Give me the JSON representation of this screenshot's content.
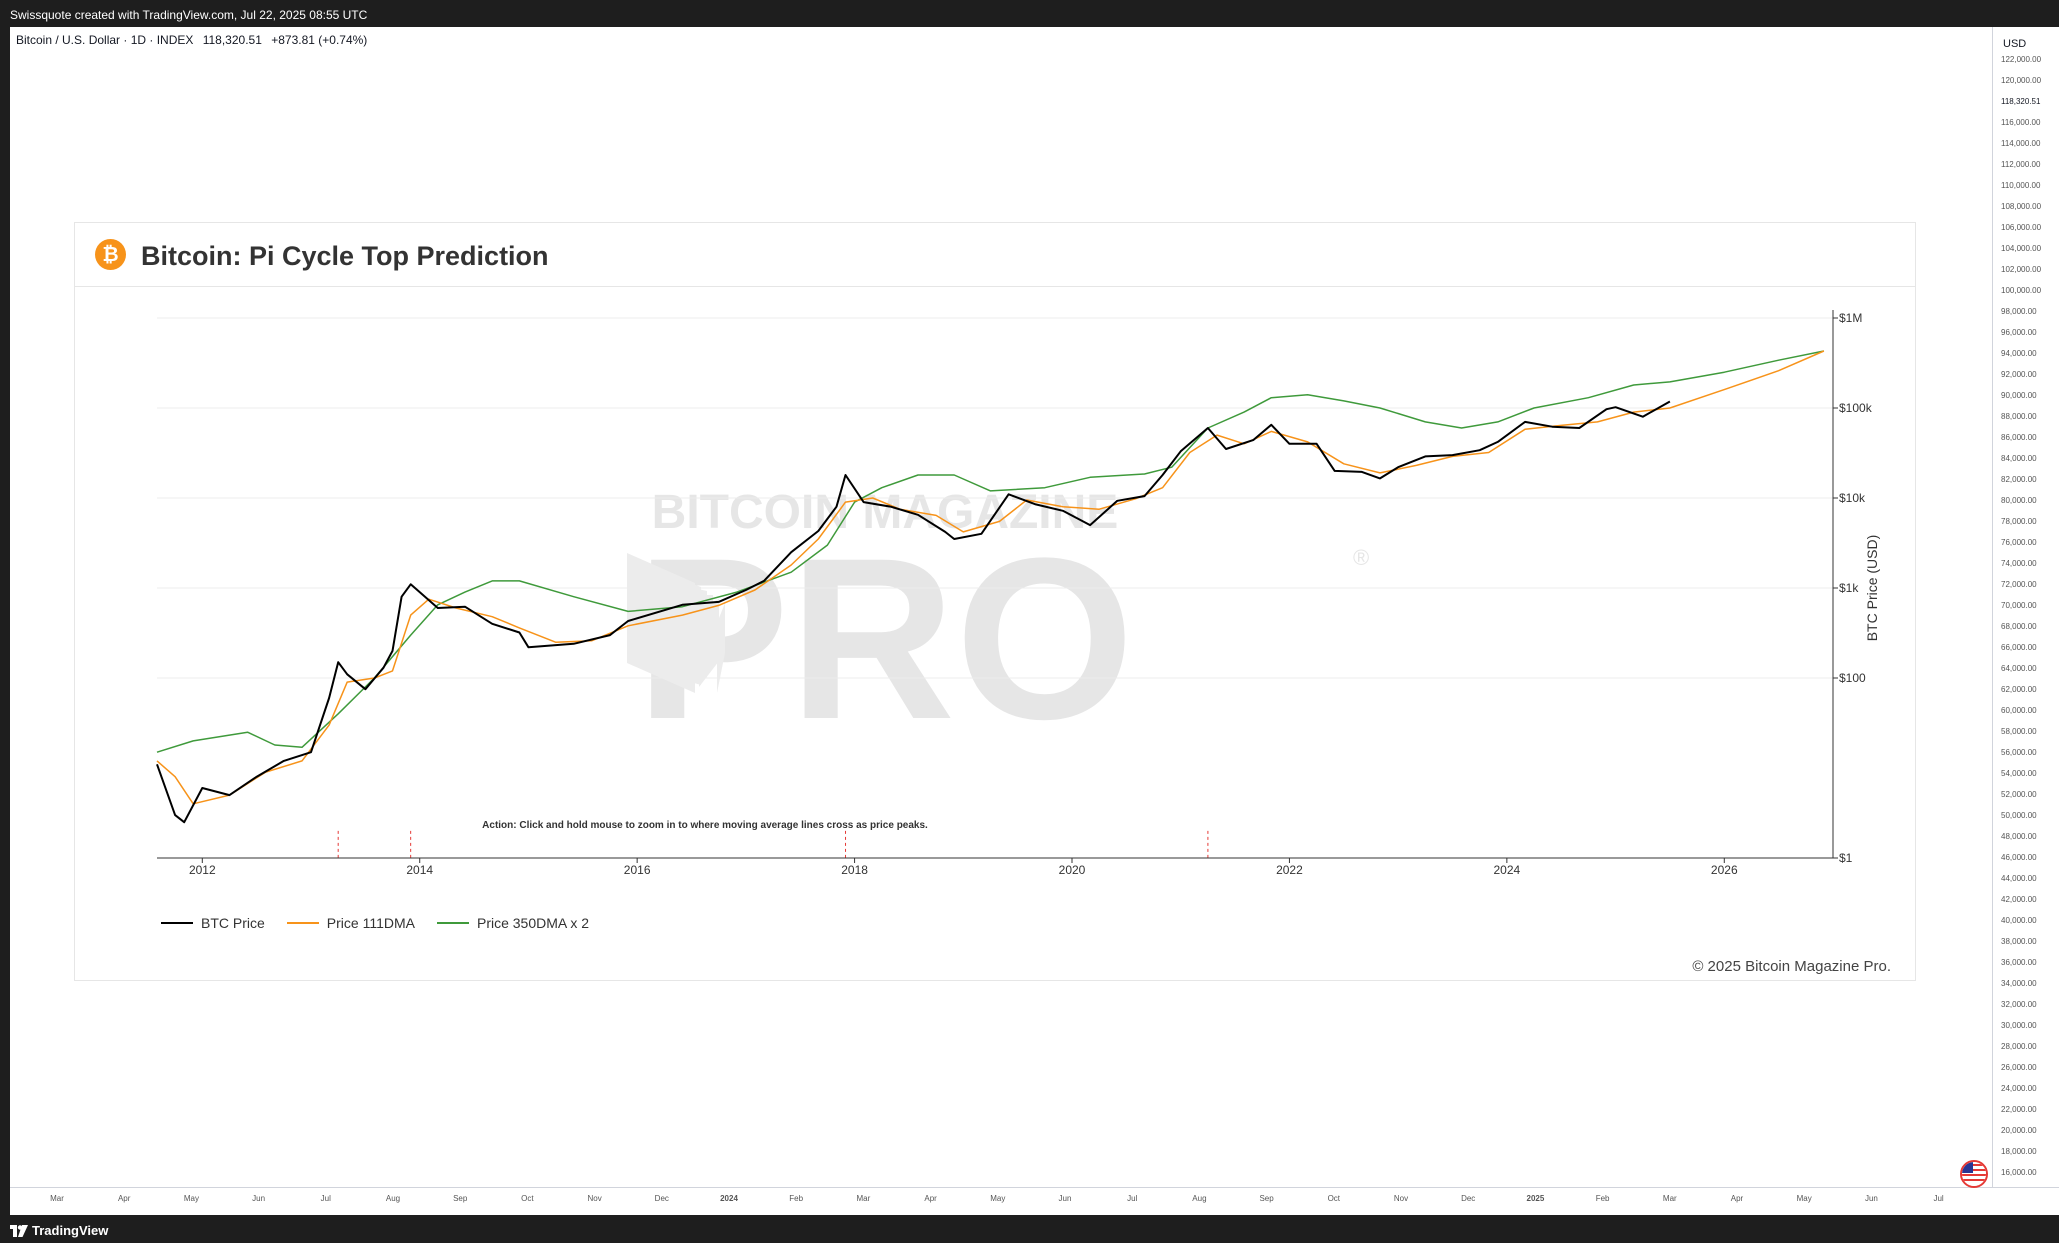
{
  "top_bar": {
    "text": "Swissquote created with TradingView.com, Jul 22, 2025 08:55 UTC"
  },
  "symbol": {
    "name": "Bitcoin / U.S. Dollar · 1D · INDEX",
    "price": "118,320.51",
    "change": "+873.81 (+0.74%)"
  },
  "right_axis": {
    "currency": "USD",
    "labels": [
      "122,000.00",
      "120,000.00",
      "118,320.51",
      "116,000.00",
      "114,000.00",
      "112,000.00",
      "110,000.00",
      "108,000.00",
      "106,000.00",
      "104,000.00",
      "102,000.00",
      "100,000.00",
      "98,000.00",
      "96,000.00",
      "94,000.00",
      "92,000.00",
      "90,000.00",
      "88,000.00",
      "86,000.00",
      "84,000.00",
      "82,000.00",
      "80,000.00",
      "78,000.00",
      "76,000.00",
      "74,000.00",
      "72,000.00",
      "70,000.00",
      "68,000.00",
      "66,000.00",
      "64,000.00",
      "62,000.00",
      "60,000.00",
      "58,000.00",
      "56,000.00",
      "54,000.00",
      "52,000.00",
      "50,000.00",
      "48,000.00",
      "46,000.00",
      "44,000.00",
      "42,000.00",
      "40,000.00",
      "38,000.00",
      "36,000.00",
      "34,000.00",
      "32,000.00",
      "30,000.00",
      "28,000.00",
      "26,000.00",
      "24,000.00",
      "22,000.00",
      "20,000.00",
      "18,000.00",
      "16,000.00"
    ]
  },
  "bottom_axis": {
    "labels": [
      "Mar",
      "Apr",
      "May",
      "Jun",
      "Jul",
      "Aug",
      "Sep",
      "Oct",
      "Nov",
      "Dec",
      "2024",
      "Feb",
      "Mar",
      "Apr",
      "May",
      "Jun",
      "Jul",
      "Aug",
      "Sep",
      "Oct",
      "Nov",
      "Dec",
      "2025",
      "Feb",
      "Mar",
      "Apr",
      "May",
      "Jun",
      "Jul"
    ]
  },
  "footer": {
    "brand": "TradingView"
  },
  "card": {
    "title": "Bitcoin: Pi Cycle Top Prediction",
    "icon": "bitcoin-icon",
    "copyright": "© 2025 Bitcoin Magazine Pro.",
    "watermark_top": "BITCOIN MAGAZINE",
    "watermark_main": "PRO",
    "watermark_reg": "®"
  },
  "chart_data": {
    "type": "line",
    "title": "Bitcoin: Pi Cycle Top Prediction",
    "xlabel": "",
    "ylabel": "BTC Price (USD)",
    "y_scale": "log",
    "ylim": [
      1,
      1000000
    ],
    "xlim": [
      "2011-08",
      "2027-01"
    ],
    "x_ticks": [
      "2012",
      "2014",
      "2016",
      "2018",
      "2020",
      "2022",
      "2024",
      "2026"
    ],
    "y_ticks": [
      "$1",
      "$100",
      "$1k",
      "$10k",
      "$100k",
      "$1M"
    ],
    "grid": true,
    "legend_position": "bottom-left",
    "annotation": "Action: Click and hold mouse to zoom in to where moving average lines cross as price peaks.",
    "cross_dates": [
      "2013-04",
      "2013-12",
      "2017-12",
      "2021-04"
    ],
    "series": [
      {
        "name": "BTC Price",
        "color": "#000000",
        "points": [
          [
            "2011-08",
            11
          ],
          [
            "2011-10",
            3
          ],
          [
            "2011-11",
            2.5
          ],
          [
            "2012-01",
            6
          ],
          [
            "2012-04",
            5
          ],
          [
            "2012-07",
            8
          ],
          [
            "2012-10",
            12
          ],
          [
            "2013-01",
            15
          ],
          [
            "2013-03",
            60
          ],
          [
            "2013-04",
            150
          ],
          [
            "2013-05",
            110
          ],
          [
            "2013-07",
            75
          ],
          [
            "2013-09",
            130
          ],
          [
            "2013-10",
            200
          ],
          [
            "2013-11",
            800
          ],
          [
            "2013-12",
            1100
          ],
          [
            "2014-01",
            900
          ],
          [
            "2014-03",
            600
          ],
          [
            "2014-06",
            620
          ],
          [
            "2014-09",
            400
          ],
          [
            "2014-12",
            320
          ],
          [
            "2015-01",
            220
          ],
          [
            "2015-06",
            240
          ],
          [
            "2015-10",
            300
          ],
          [
            "2015-12",
            430
          ],
          [
            "2016-06",
            650
          ],
          [
            "2016-10",
            700
          ],
          [
            "2017-01",
            950
          ],
          [
            "2017-03",
            1200
          ],
          [
            "2017-06",
            2500
          ],
          [
            "2017-09",
            4300
          ],
          [
            "2017-11",
            8000
          ],
          [
            "2017-12",
            18000
          ],
          [
            "2018-02",
            9000
          ],
          [
            "2018-05",
            8000
          ],
          [
            "2018-08",
            6500
          ],
          [
            "2018-11",
            4200
          ],
          [
            "2018-12",
            3500
          ],
          [
            "2019-03",
            4000
          ],
          [
            "2019-06",
            11000
          ],
          [
            "2019-09",
            8500
          ],
          [
            "2019-12",
            7200
          ],
          [
            "2020-03",
            5000
          ],
          [
            "2020-06",
            9300
          ],
          [
            "2020-09",
            10500
          ],
          [
            "2020-11",
            18000
          ],
          [
            "2021-01",
            33000
          ],
          [
            "2021-04",
            60000
          ],
          [
            "2021-06",
            35000
          ],
          [
            "2021-09",
            44000
          ],
          [
            "2021-11",
            65000
          ],
          [
            "2022-01",
            40000
          ],
          [
            "2022-04",
            40000
          ],
          [
            "2022-06",
            20000
          ],
          [
            "2022-09",
            19500
          ],
          [
            "2022-11",
            16500
          ],
          [
            "2023-01",
            22000
          ],
          [
            "2023-04",
            29000
          ],
          [
            "2023-07",
            30000
          ],
          [
            "2023-10",
            34000
          ],
          [
            "2023-12",
            42000
          ],
          [
            "2024-03",
            70000
          ],
          [
            "2024-06",
            62000
          ],
          [
            "2024-09",
            60000
          ],
          [
            "2024-12",
            97000
          ],
          [
            "2025-01",
            102000
          ],
          [
            "2025-04",
            80000
          ],
          [
            "2025-07",
            118000
          ]
        ]
      },
      {
        "name": "Price 111DMA",
        "color": "#f7931a",
        "points": [
          [
            "2011-08",
            12
          ],
          [
            "2011-10",
            8
          ],
          [
            "2011-12",
            4
          ],
          [
            "2012-04",
            5
          ],
          [
            "2012-08",
            9
          ],
          [
            "2012-12",
            12
          ],
          [
            "2013-03",
            30
          ],
          [
            "2013-05",
            90
          ],
          [
            "2013-08",
            100
          ],
          [
            "2013-10",
            120
          ],
          [
            "2013-12",
            500
          ],
          [
            "2014-02",
            750
          ],
          [
            "2014-05",
            600
          ],
          [
            "2014-09",
            480
          ],
          [
            "2014-12",
            360
          ],
          [
            "2015-04",
            250
          ],
          [
            "2015-08",
            260
          ],
          [
            "2015-12",
            380
          ],
          [
            "2016-06",
            500
          ],
          [
            "2016-10",
            640
          ],
          [
            "2017-02",
            950
          ],
          [
            "2017-06",
            1800
          ],
          [
            "2017-09",
            3500
          ],
          [
            "2017-12",
            9000
          ],
          [
            "2018-03",
            10000
          ],
          [
            "2018-06",
            7500
          ],
          [
            "2018-10",
            6400
          ],
          [
            "2019-01",
            4200
          ],
          [
            "2019-05",
            5500
          ],
          [
            "2019-08",
            9500
          ],
          [
            "2019-12",
            8000
          ],
          [
            "2020-04",
            7500
          ],
          [
            "2020-08",
            9800
          ],
          [
            "2020-11",
            13000
          ],
          [
            "2021-02",
            32000
          ],
          [
            "2021-05",
            50000
          ],
          [
            "2021-08",
            40000
          ],
          [
            "2021-11",
            55000
          ],
          [
            "2022-03",
            42000
          ],
          [
            "2022-07",
            24000
          ],
          [
            "2022-11",
            19000
          ],
          [
            "2023-03",
            23000
          ],
          [
            "2023-07",
            29000
          ],
          [
            "2023-11",
            32000
          ],
          [
            "2024-03",
            58000
          ],
          [
            "2024-07",
            64000
          ],
          [
            "2024-11",
            70000
          ],
          [
            "2025-03",
            90000
          ],
          [
            "2025-07",
            100000
          ],
          [
            "2026-01",
            160000
          ],
          [
            "2026-07",
            260000
          ],
          [
            "2026-12",
            430000
          ]
        ]
      },
      {
        "name": "Price 350DMA x 2",
        "color": "#3f9a3b",
        "points": [
          [
            "2011-08",
            15
          ],
          [
            "2011-12",
            20
          ],
          [
            "2012-06",
            25
          ],
          [
            "2012-09",
            18
          ],
          [
            "2012-12",
            17
          ],
          [
            "2013-04",
            40
          ],
          [
            "2013-08",
            100
          ],
          [
            "2013-12",
            300
          ],
          [
            "2014-03",
            650
          ],
          [
            "2014-06",
            900
          ],
          [
            "2014-09",
            1200
          ],
          [
            "2014-12",
            1200
          ],
          [
            "2015-06",
            800
          ],
          [
            "2015-12",
            550
          ],
          [
            "2016-06",
            620
          ],
          [
            "2016-12",
            900
          ],
          [
            "2017-06",
            1500
          ],
          [
            "2017-10",
            3000
          ],
          [
            "2018-01",
            9000
          ],
          [
            "2018-04",
            13000
          ],
          [
            "2018-08",
            18000
          ],
          [
            "2018-12",
            18000
          ],
          [
            "2019-04",
            12000
          ],
          [
            "2019-10",
            13000
          ],
          [
            "2020-03",
            17000
          ],
          [
            "2020-09",
            18500
          ],
          [
            "2020-12",
            22000
          ],
          [
            "2021-04",
            60000
          ],
          [
            "2021-08",
            90000
          ],
          [
            "2021-11",
            130000
          ],
          [
            "2022-03",
            140000
          ],
          [
            "2022-07",
            120000
          ],
          [
            "2022-11",
            100000
          ],
          [
            "2023-04",
            70000
          ],
          [
            "2023-08",
            60000
          ],
          [
            "2023-12",
            70000
          ],
          [
            "2024-04",
            100000
          ],
          [
            "2024-10",
            130000
          ],
          [
            "2025-03",
            180000
          ],
          [
            "2025-07",
            195000
          ],
          [
            "2026-01",
            250000
          ],
          [
            "2026-07",
            340000
          ],
          [
            "2026-12",
            430000
          ]
        ]
      }
    ]
  }
}
